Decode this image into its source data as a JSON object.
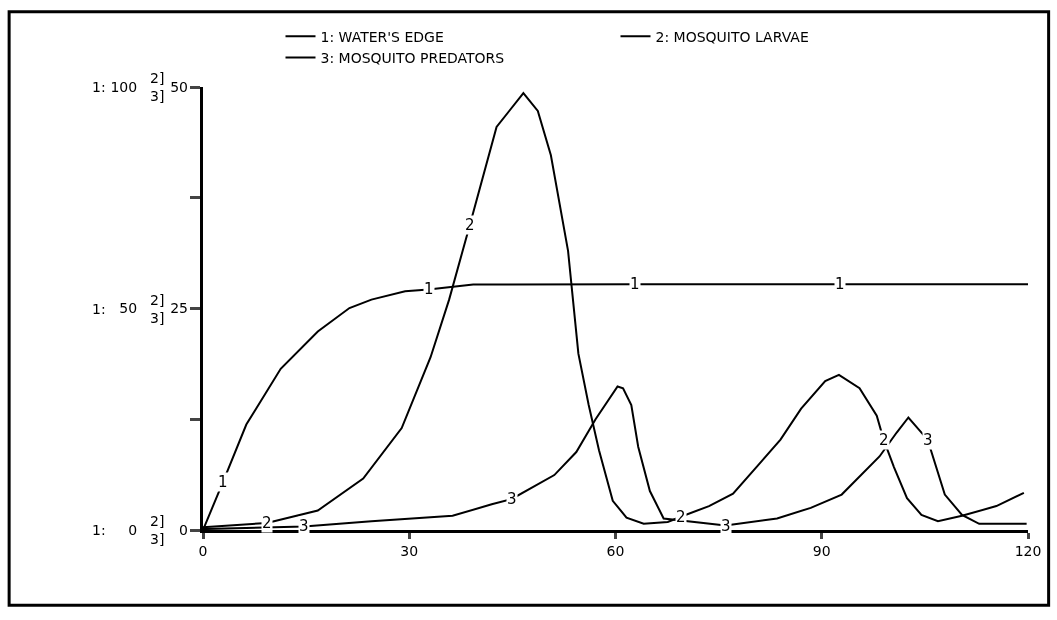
{
  "chart_data": {
    "type": "line",
    "xlim": [
      0,
      120
    ],
    "xticks": [
      0,
      30,
      60,
      90,
      120
    ],
    "ylim": [
      0,
      100
    ],
    "yticks": [
      0,
      {
        "value": 25,
        "label": null
      },
      50,
      {
        "value": 75,
        "label": null
      },
      100
    ],
    "y2lim": [
      0,
      50
    ],
    "y2ticks": [
      0,
      25,
      50
    ],
    "ylabel": "1:",
    "y2label": "2]\n3]",
    "legend": "top",
    "marker": "none",
    "line_style": "solid",
    "series": [
      {
        "name": "1: WATER'S EDGE",
        "color": "#000000",
        "x": [
          0,
          2.9,
          6.3,
          11.3,
          16.7,
          21.3,
          24.5,
          29.4,
          32.8,
          39.3,
          62.8,
          92.7,
          120
        ],
        "values": [
          0,
          10.8,
          23.8,
          36.4,
          44.8,
          50.1,
          52,
          53.9,
          54.3,
          55.4,
          55.5,
          55.5,
          55.5
        ]
      },
      {
        "name": "2: MOSQUITO LARVAE",
        "color": "#000000",
        "axis": "y2",
        "x": [
          0,
          9.3,
          16.7,
          23.3,
          28.9,
          33.1,
          35.8,
          38.8,
          42.7,
          46.6,
          48.7,
          50.6,
          53.1,
          54.6,
          56.1,
          57.6,
          59.6,
          61.6,
          64.1,
          67.6,
          69.5,
          73.6,
          77.1,
          80.5,
          84,
          87,
          90.5,
          92.5,
          95.5,
          98,
          99,
          100.5,
          102.4,
          104.5,
          106.9,
          110.4,
          115.4,
          119.4
        ],
        "values": [
          0.3,
          0.8,
          2.2,
          5.8,
          11.5,
          19.5,
          26,
          34.4,
          45.5,
          49.3,
          47.3,
          42.3,
          31.5,
          19.9,
          14.1,
          9,
          3.3,
          1.4,
          0.7,
          0.9,
          1.5,
          2.7,
          4.1,
          7.1,
          10.2,
          13.7,
          16.8,
          17.5,
          16,
          12.9,
          10.2,
          7.1,
          3.6,
          1.7,
          1,
          1.6,
          2.7,
          4.2
        ]
      },
      {
        "name": "3: MOSQUITO PREDATORS",
        "color": "#000000",
        "axis": "y2",
        "x": [
          0,
          14.7,
          24.5,
          36.3,
          42,
          44.9,
          51.1,
          54.3,
          57.1,
          60.3,
          61.1,
          62.3,
          63.3,
          65,
          67,
          76,
          83.5,
          88.4,
          92.9,
          98.4,
          100.9,
          102.6,
          105.4,
          107.9,
          110.4,
          112.9,
          119.8
        ],
        "values": [
          0.1,
          0.4,
          1,
          1.6,
          2.9,
          3.5,
          6.2,
          8.8,
          12.5,
          16.2,
          16,
          14.1,
          9.4,
          4.4,
          1.3,
          0.5,
          1.3,
          2.5,
          4,
          8.3,
          11,
          12.7,
          10.2,
          4,
          1.7,
          0.7,
          0.7
        ]
      }
    ],
    "annotations": [
      {
        "text": "1",
        "x": 2.9,
        "y": 10.8
      },
      {
        "text": "1",
        "x": 32.8,
        "y": 54.3
      },
      {
        "text": "1",
        "x": 62.8,
        "y": 55.5
      },
      {
        "text": "1",
        "x": 92.7,
        "y": 55.5
      },
      {
        "text": "2",
        "x": 9.3,
        "y": 1.6
      },
      {
        "text": "2",
        "x": 38.8,
        "y": 68.8
      },
      {
        "text": "2",
        "x": 69.5,
        "y": 3
      },
      {
        "text": "2",
        "x": 99,
        "y": 20.4
      },
      {
        "text": "3",
        "x": 14.7,
        "y": 0.8
      },
      {
        "text": "3",
        "x": 44.9,
        "y": 7
      },
      {
        "text": "3",
        "x": 76,
        "y": 1
      },
      {
        "text": "3",
        "x": 105.4,
        "y": 20.4
      }
    ]
  }
}
